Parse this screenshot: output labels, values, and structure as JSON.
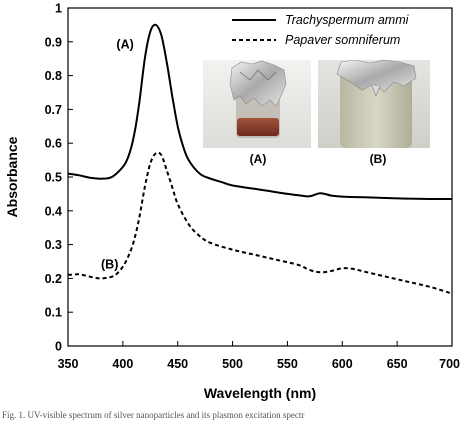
{
  "chart_data": {
    "type": "line",
    "xlabel": "Wavelength (nm)",
    "ylabel": "Absorbance",
    "xlim": [
      350,
      700
    ],
    "ylim": [
      0,
      1
    ],
    "xticks": [
      350,
      400,
      450,
      500,
      550,
      600,
      650,
      700
    ],
    "yticks": [
      0,
      0.1,
      0.2,
      0.3,
      0.4,
      0.5,
      0.6,
      0.7,
      0.8,
      0.9,
      1
    ],
    "legend": "top-right",
    "series": [
      {
        "name": "Trachyspermum ammi",
        "line_style": "solid",
        "color": "#000000",
        "x": [
          350,
          360,
          370,
          380,
          390,
          400,
          405,
          410,
          415,
          420,
          425,
          430,
          435,
          440,
          445,
          450,
          455,
          460,
          470,
          480,
          490,
          500,
          520,
          540,
          560,
          570,
          580,
          590,
          600,
          620,
          640,
          660,
          680,
          700
        ],
        "y": [
          0.51,
          0.505,
          0.498,
          0.495,
          0.5,
          0.53,
          0.56,
          0.62,
          0.72,
          0.85,
          0.93,
          0.95,
          0.92,
          0.84,
          0.74,
          0.65,
          0.59,
          0.55,
          0.51,
          0.495,
          0.485,
          0.475,
          0.465,
          0.455,
          0.446,
          0.443,
          0.452,
          0.445,
          0.442,
          0.44,
          0.438,
          0.436,
          0.435,
          0.435
        ]
      },
      {
        "name": "Papaver somniferum",
        "line_style": "dashed",
        "color": "#000000",
        "x": [
          350,
          360,
          370,
          380,
          390,
          395,
          400,
          405,
          410,
          415,
          420,
          425,
          430,
          435,
          440,
          445,
          450,
          460,
          470,
          480,
          500,
          520,
          540,
          560,
          570,
          580,
          590,
          600,
          610,
          620,
          640,
          660,
          680,
          700
        ],
        "y": [
          0.21,
          0.212,
          0.205,
          0.2,
          0.205,
          0.215,
          0.235,
          0.265,
          0.31,
          0.38,
          0.47,
          0.54,
          0.57,
          0.565,
          0.52,
          0.47,
          0.42,
          0.36,
          0.325,
          0.305,
          0.285,
          0.27,
          0.255,
          0.24,
          0.225,
          0.218,
          0.222,
          0.23,
          0.228,
          0.22,
          0.205,
          0.19,
          0.175,
          0.155
        ]
      }
    ],
    "annotations": [
      {
        "text": "(A)",
        "x": 402,
        "y": 0.88
      },
      {
        "text": "(B)",
        "x": 388,
        "y": 0.23
      }
    ],
    "inset_labels": [
      "(A)",
      "(B)"
    ]
  },
  "caption_text": "Fig. 1. UV-visible spectrum of silver nanoparticles and its plasmon excitation spectr"
}
